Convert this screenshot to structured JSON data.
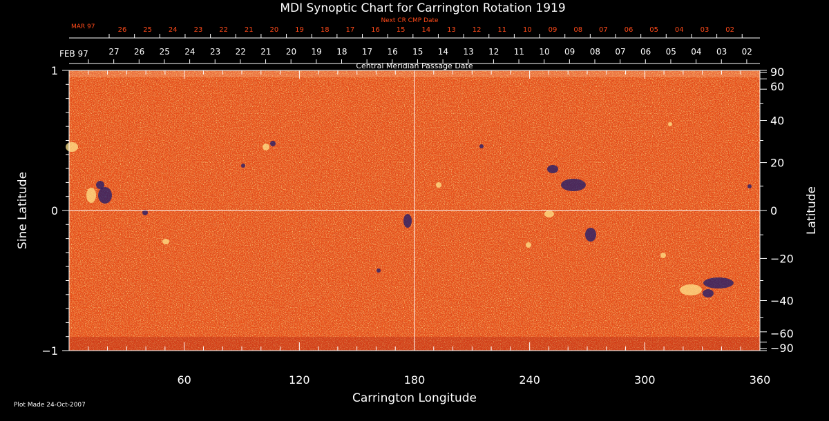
{
  "chart_data": {
    "type": "heatmap",
    "title": "MDI Synoptic Chart for Carrington Rotation 1919",
    "xlabel": "Carrington Longitude",
    "ylabel_left": "Sine Latitude",
    "ylabel_right": "Latitude",
    "xlim": [
      0,
      360
    ],
    "ylim": [
      -1,
      1
    ],
    "x_ticks": [
      60,
      120,
      180,
      240,
      300,
      360
    ],
    "y_ticks_left": [
      {
        "value": 1,
        "label": "1"
      },
      {
        "value": 0,
        "label": "0"
      },
      {
        "value": -1,
        "label": "−1"
      }
    ],
    "y_ticks_right": [
      {
        "value": 90,
        "label": "90"
      },
      {
        "value": 60,
        "label": "60"
      },
      {
        "value": 40,
        "label": "40"
      },
      {
        "value": 20,
        "label": "20"
      },
      {
        "value": 0,
        "label": "0"
      },
      {
        "value": -20,
        "label": "−20"
      },
      {
        "value": -40,
        "label": "−40"
      },
      {
        "value": -60,
        "label": "−60"
      },
      {
        "value": -90,
        "label": "−90"
      }
    ],
    "date_axis_title": "Central Meridian Passage Date",
    "date_month_label": "FEB 97",
    "date_labels": [
      "27",
      "26",
      "25",
      "24",
      "23",
      "22",
      "21",
      "20",
      "19",
      "18",
      "17",
      "16",
      "15",
      "14",
      "13",
      "12",
      "11",
      "10",
      "09",
      "08",
      "07",
      "06",
      "05",
      "04",
      "03",
      "02"
    ],
    "next_axis_title": "Next CR CMP Date",
    "next_month_label": "MAR 97",
    "next_date_labels": [
      "26",
      "25",
      "24",
      "23",
      "22",
      "21",
      "20",
      "19",
      "18",
      "17",
      "16",
      "15",
      "14",
      "13",
      "12",
      "11",
      "10",
      "09",
      "08",
      "07",
      "06",
      "05",
      "04",
      "03",
      "02"
    ],
    "crosshair": {
      "longitude": 180,
      "sine_latitude": 0
    },
    "colors": {
      "background": "#000000",
      "field_base": "#e8501a",
      "positive": "#ffe38a",
      "negative": "#1a1a6e",
      "axis": "#ffffff",
      "next_axis": "#ff4a1a"
    }
  },
  "footer": {
    "plot_made": "Plot Made 24-Oct-2007"
  }
}
